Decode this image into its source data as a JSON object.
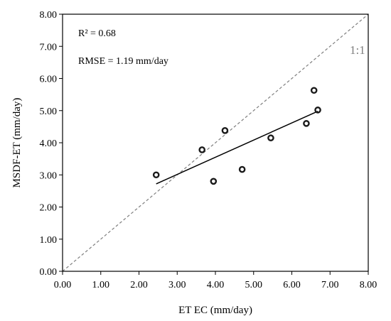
{
  "chart_data": {
    "type": "scatter",
    "xlabel": "ET EC (mm/day)",
    "ylabel": "MSDF-ET  (mm/day)",
    "xlim": [
      0,
      8
    ],
    "ylim": [
      0,
      8
    ],
    "x_ticks": [
      "0.00",
      "1.00",
      "2.00",
      "3.00",
      "4.00",
      "5.00",
      "6.00",
      "7.00",
      "8.00"
    ],
    "y_ticks": [
      "0.00",
      "1.00",
      "2.00",
      "3.00",
      "4.00",
      "5.00",
      "6.00",
      "7.00",
      "8.00"
    ],
    "grid": false,
    "points": [
      {
        "x": 2.45,
        "y": 3.0
      },
      {
        "x": 3.65,
        "y": 3.78
      },
      {
        "x": 3.95,
        "y": 2.8
      },
      {
        "x": 4.25,
        "y": 4.38
      },
      {
        "x": 4.7,
        "y": 3.17
      },
      {
        "x": 5.45,
        "y": 4.15
      },
      {
        "x": 6.38,
        "y": 4.6
      },
      {
        "x": 6.58,
        "y": 5.63
      },
      {
        "x": 6.68,
        "y": 5.02
      }
    ],
    "trendline": {
      "x1": 2.45,
      "y1": 2.72,
      "x2": 6.68,
      "y2": 4.98
    },
    "reference_line": {
      "label": "1:1",
      "x1": 0,
      "y1": 0,
      "x2": 8,
      "y2": 8
    },
    "annotations": {
      "r2": "R² = 0.68",
      "rmse": "RMSE = 1.19 mm/day"
    },
    "colors": {
      "points": "#1a1a1a",
      "trendline": "#000000",
      "reference_line": "#7f7f7f",
      "reference_label": "#7f7f7f"
    }
  }
}
